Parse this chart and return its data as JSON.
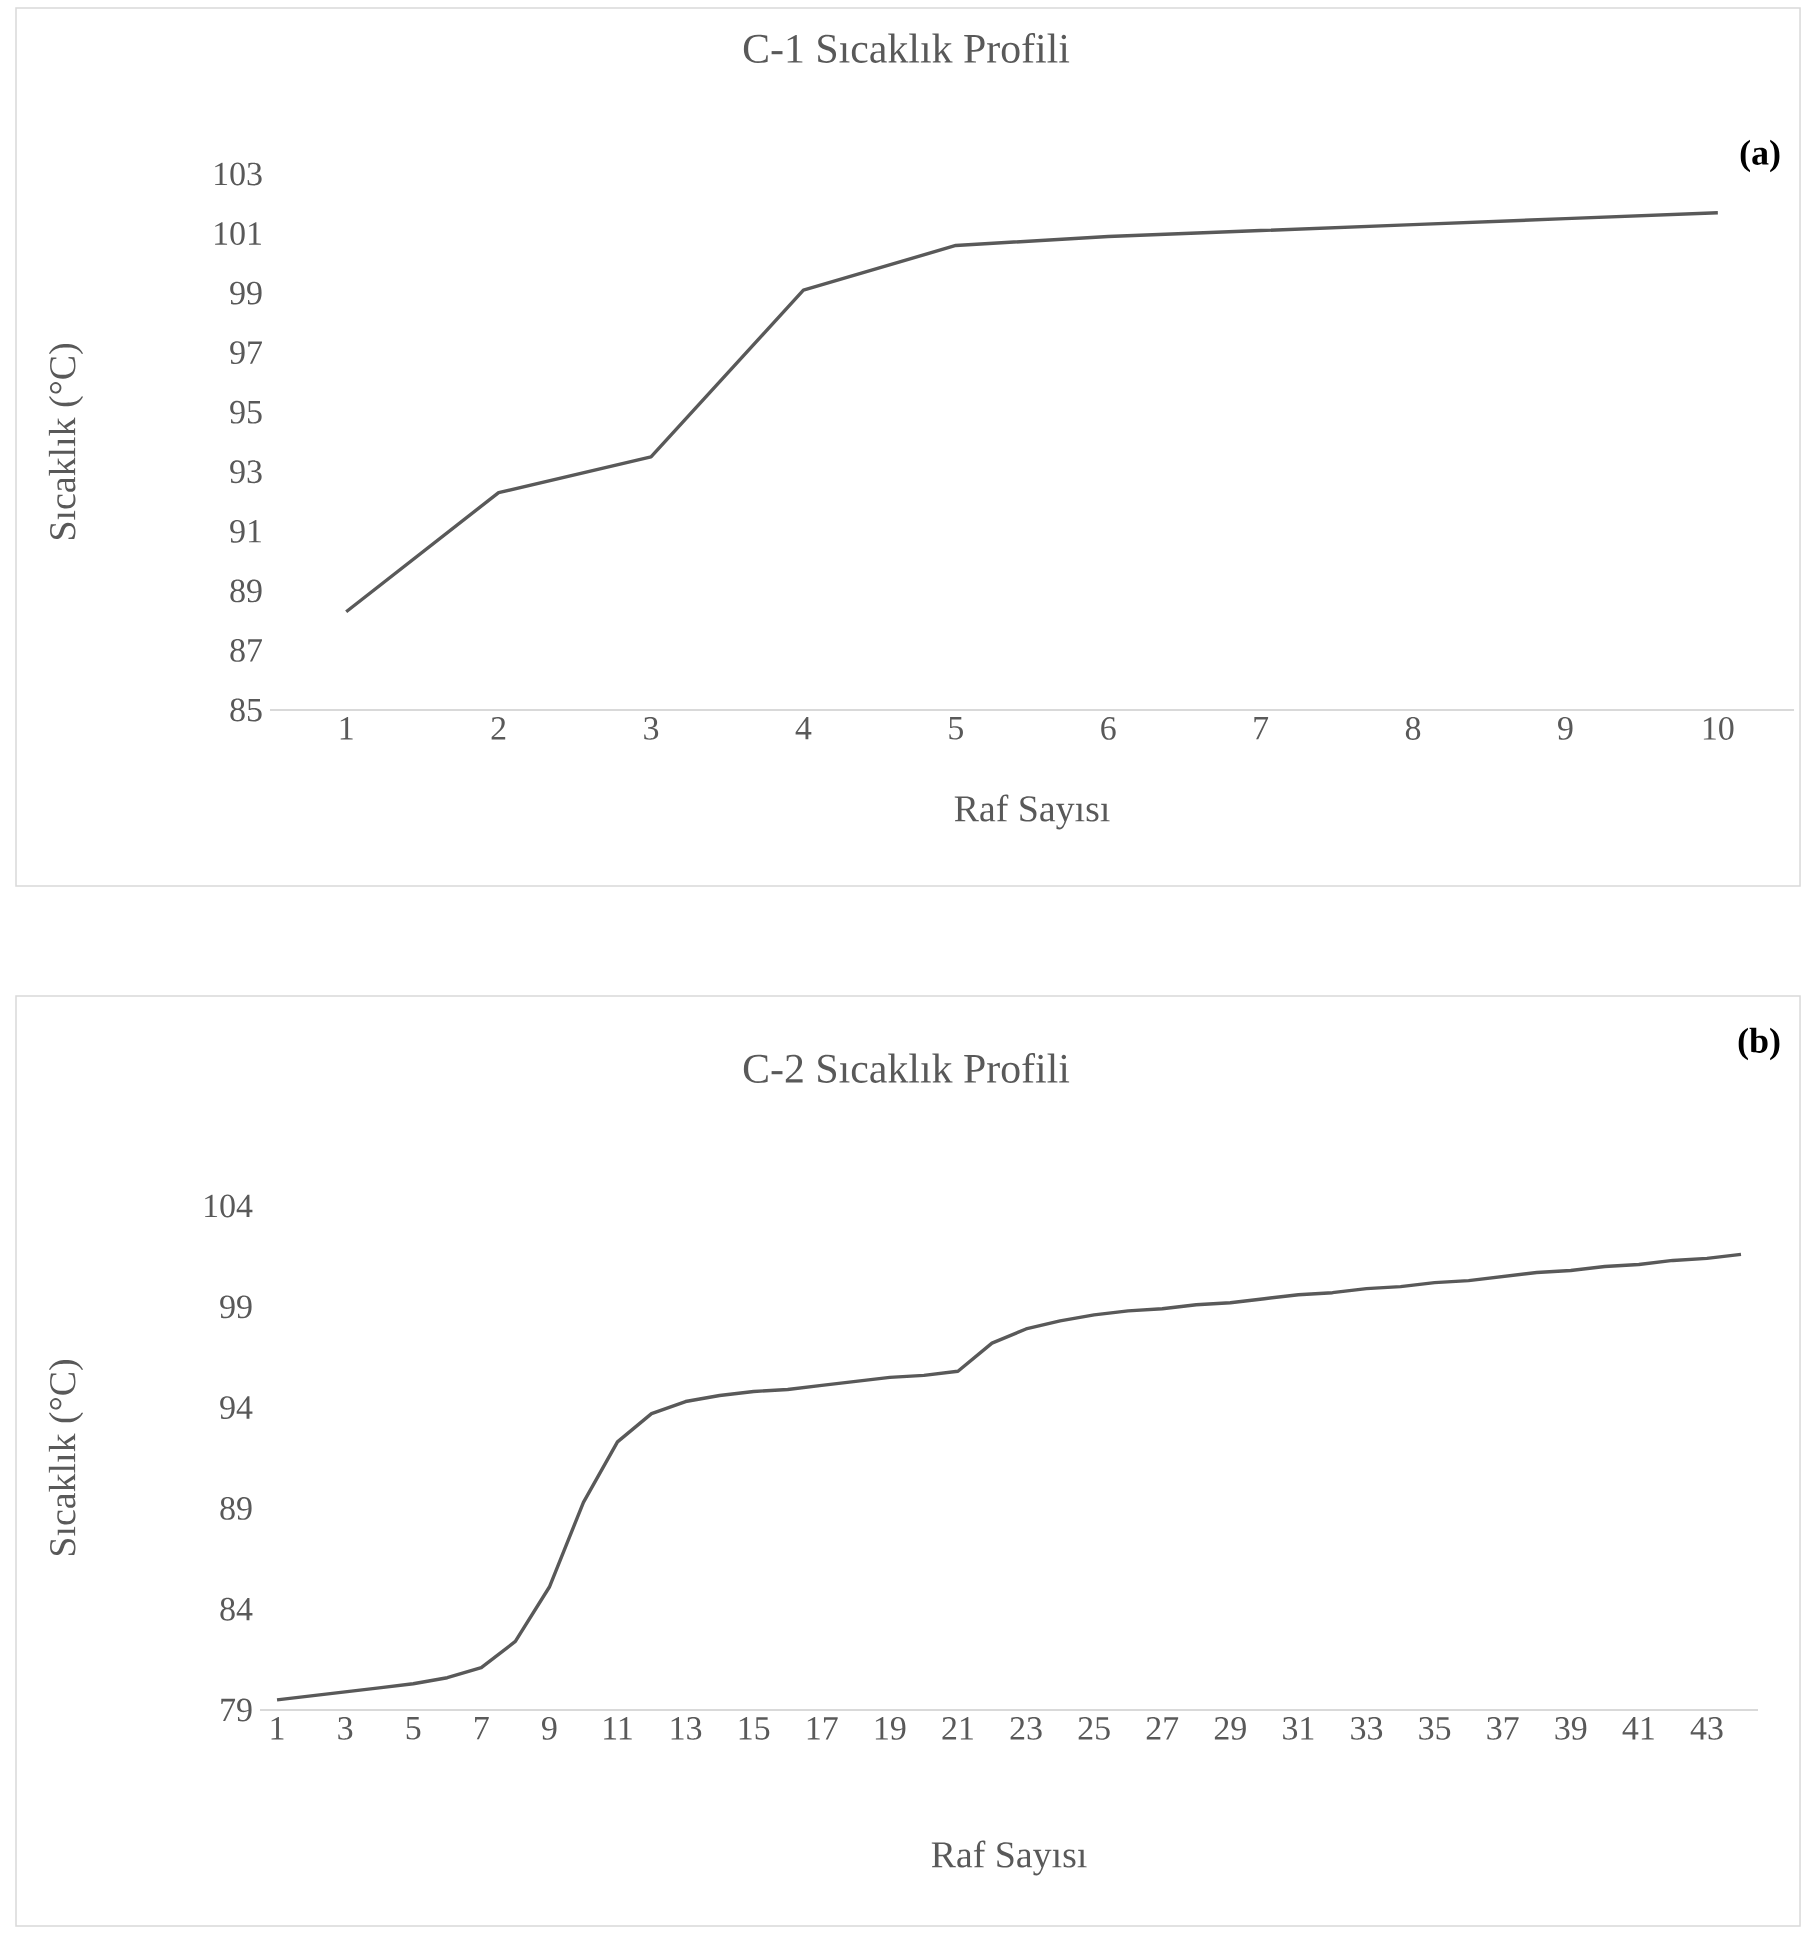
{
  "chart_data": [
    {
      "type": "line",
      "title": "C-1 Sıcaklık Profili",
      "xlabel": "Raf Sayısı",
      "ylabel": "Sıcaklık (°C)",
      "annotations": [
        "(a)"
      ],
      "categories": [
        "1",
        "2",
        "3",
        "4",
        "5",
        "6",
        "7",
        "8",
        "9",
        "10"
      ],
      "series": [
        {
          "color": "#595959",
          "values": [
            88.3,
            92.3,
            93.5,
            99.1,
            100.6,
            100.9,
            101.1,
            101.3,
            101.5,
            101.7
          ]
        }
      ],
      "ylim": [
        85,
        103
      ],
      "yticks": [
        85,
        87,
        89,
        91,
        93,
        95,
        97,
        99,
        101,
        103
      ],
      "grid": false
    },
    {
      "type": "line",
      "title": "C-2 Sıcaklık Profili",
      "xlabel": "Raf Sayısı",
      "ylabel": "Sıcaklık (°C)",
      "annotations": [
        "(b)"
      ],
      "categories": [
        "1",
        null,
        "3",
        null,
        "5",
        null,
        "7",
        null,
        "9",
        null,
        "11",
        null,
        "13",
        null,
        "15",
        null,
        "17",
        null,
        "19",
        null,
        "21",
        null,
        "23",
        null,
        "25",
        null,
        "27",
        null,
        "29",
        null,
        "31",
        null,
        "33",
        null,
        "35",
        null,
        "37",
        null,
        "39",
        null,
        "41",
        null,
        "43",
        null
      ],
      "series": [
        {
          "color": "#595959",
          "values": [
            79.5,
            79.7,
            79.9,
            80.1,
            80.3,
            80.6,
            81.1,
            82.4,
            85.1,
            89.3,
            92.3,
            93.7,
            94.3,
            94.6,
            94.8,
            94.9,
            95.1,
            95.3,
            95.5,
            95.6,
            95.8,
            97.2,
            97.9,
            98.3,
            98.6,
            98.8,
            98.9,
            99.1,
            99.2,
            99.4,
            99.6,
            99.7,
            99.9,
            100.0,
            100.2,
            100.3,
            100.5,
            100.7,
            100.8,
            101.0,
            101.1,
            101.3,
            101.4,
            101.6
          ]
        }
      ],
      "ylim": [
        79,
        104
      ],
      "yticks": [
        79,
        84,
        89,
        94,
        99,
        104
      ],
      "grid": false
    }
  ]
}
